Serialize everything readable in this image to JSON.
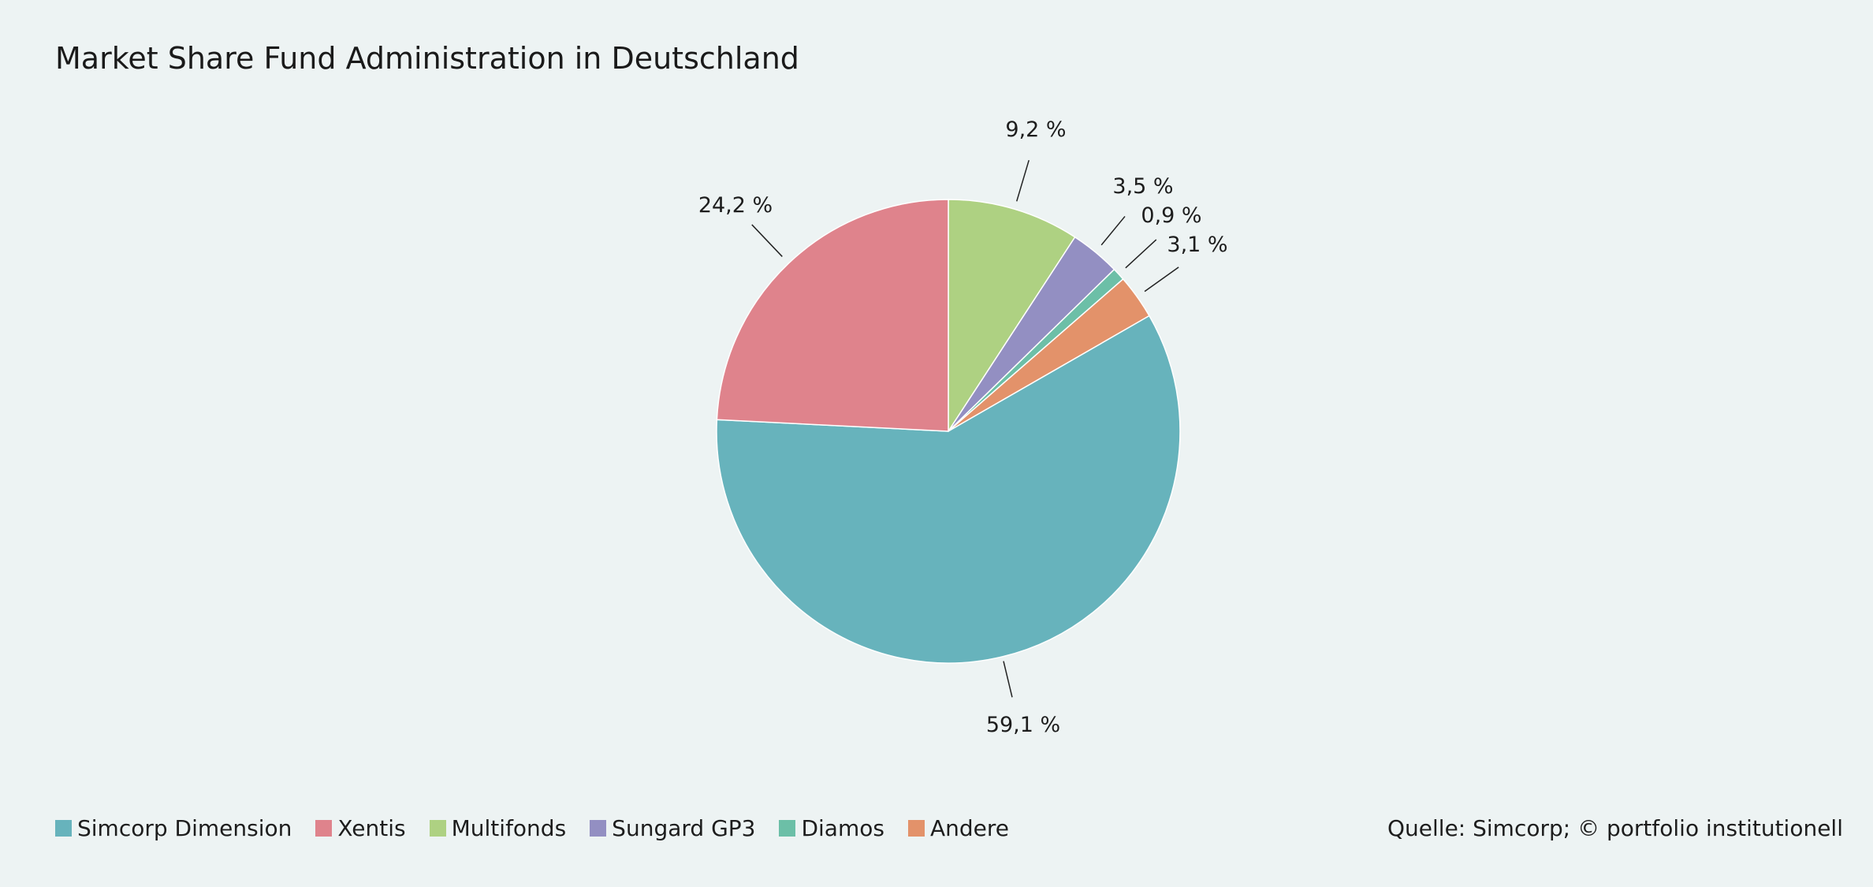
{
  "title": "Market Share Fund Administration in Deutschland",
  "source": "Quelle: Simcorp; © portfolio institutionell",
  "chart_data": {
    "type": "pie",
    "title": "Market Share Fund Administration in Deutschland",
    "start_angle_deg": 0,
    "direction": "clockwise",
    "legend_position": "bottom-left",
    "slices": [
      {
        "name": "Multifonds",
        "value": 9.2,
        "label": "9,2 %",
        "color": "#aed182"
      },
      {
        "name": "Sungard GP3",
        "value": 3.5,
        "label": "3,5 %",
        "color": "#938fc2"
      },
      {
        "name": "Diamos",
        "value": 0.9,
        "label": "0,9 %",
        "color": "#6cbfa7"
      },
      {
        "name": "Andere",
        "value": 3.1,
        "label": "3,1 %",
        "color": "#e3926a"
      },
      {
        "name": "Simcorp Dimension",
        "value": 59.1,
        "label": "59,1 %",
        "color": "#67b3bc"
      },
      {
        "name": "Xentis",
        "value": 24.2,
        "label": "24,2 %",
        "color": "#df838c"
      }
    ]
  },
  "legend": [
    {
      "name": "Simcorp Dimension",
      "color": "#67b3bc"
    },
    {
      "name": "Xentis",
      "color": "#df838c"
    },
    {
      "name": "Multifonds",
      "color": "#aed182"
    },
    {
      "name": "Sungard GP3",
      "color": "#938fc2"
    },
    {
      "name": "Diamos",
      "color": "#6cbfa7"
    },
    {
      "name": "Andere",
      "color": "#e3926a"
    }
  ]
}
